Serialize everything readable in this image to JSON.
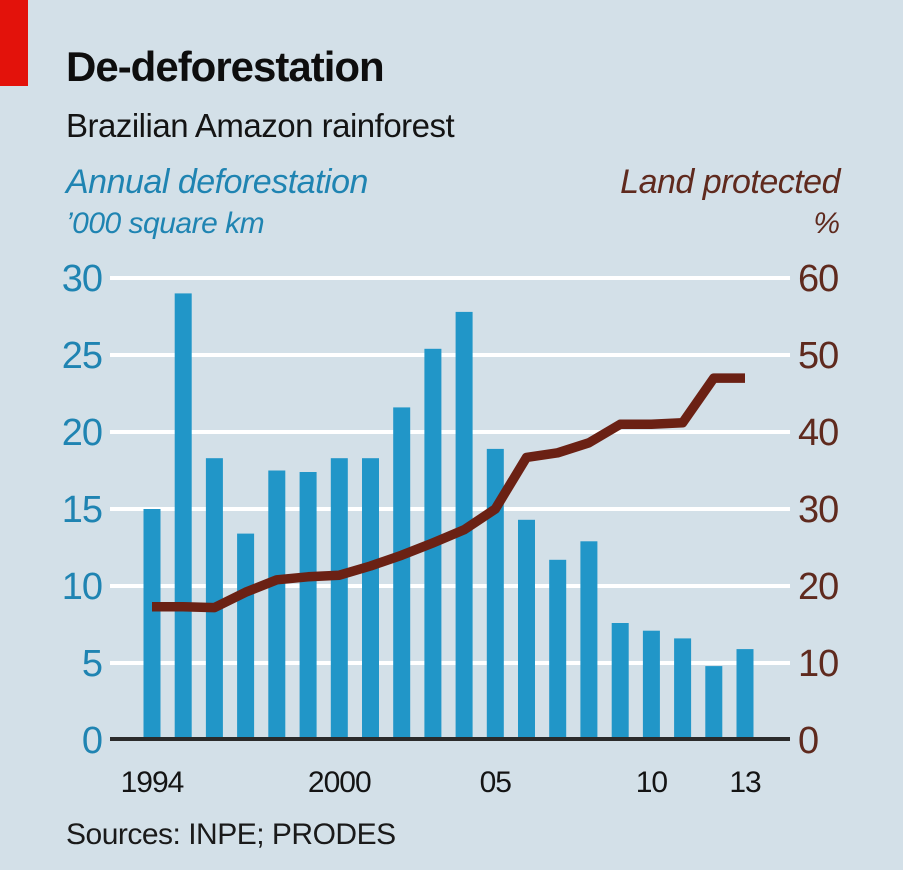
{
  "header": {
    "title": "De-deforestation",
    "subtitle": "Brazilian Amazon rainforest"
  },
  "legend": {
    "left": {
      "title": "Annual deforestation",
      "unit": "’000 square km"
    },
    "right": {
      "title": "Land protected",
      "unit": "%"
    }
  },
  "footer": {
    "sources": "Sources: INPE; PRODES"
  },
  "palette": {
    "background": "#d3e0e8",
    "accent_red": "#e3120b",
    "bar_blue": "#2196c8",
    "blue_text": "#1f84b2",
    "line_maroon": "#6b2114",
    "maroon_text": "#5f2a1e",
    "gridline": "#ffffff",
    "axis_line": "#2b2b2b",
    "black_text": "#141414"
  },
  "chart_data": {
    "type": "bar+line",
    "title": "De-deforestation — Brazilian Amazon rainforest",
    "grid": "horizontal-white",
    "legend_position": "above, split left (bars) / right (line)",
    "categories": [
      1994,
      1995,
      1996,
      1997,
      1998,
      1999,
      2000,
      2001,
      2002,
      2003,
      2004,
      2005,
      2006,
      2007,
      2008,
      2009,
      2010,
      2011,
      2012,
      2013
    ],
    "series": [
      {
        "name": "Annual deforestation",
        "unit": "’000 square km",
        "type": "bar",
        "axis": "left",
        "values": [
          15.0,
          29.0,
          18.3,
          13.4,
          17.5,
          17.4,
          18.3,
          18.3,
          21.6,
          25.4,
          27.8,
          18.9,
          14.3,
          11.7,
          12.9,
          7.6,
          7.1,
          6.6,
          4.8,
          5.9
        ]
      },
      {
        "name": "Land protected",
        "unit": "%",
        "type": "line",
        "axis": "right",
        "values": [
          17.3,
          17.3,
          17.2,
          19.2,
          20.8,
          21.2,
          21.4,
          22.6,
          24.0,
          25.6,
          27.3,
          30.0,
          36.7,
          37.3,
          38.6,
          41.0,
          41.0,
          41.2,
          47.0,
          47.0
        ]
      }
    ],
    "left_axis": {
      "label": "Annual deforestation, ’000 square km",
      "min": 0,
      "max": 30,
      "ticks": [
        30,
        25,
        20,
        15,
        10,
        5,
        0
      ]
    },
    "right_axis": {
      "label": "Land protected, %",
      "min": 0,
      "max": 60,
      "ticks": [
        60,
        50,
        40,
        30,
        20,
        10,
        0
      ]
    },
    "x_ticks": [
      {
        "label": "1994",
        "year": 1994
      },
      {
        "label": "2000",
        "year": 2000
      },
      {
        "label": "05",
        "year": 2005
      },
      {
        "label": "10",
        "year": 2010
      },
      {
        "label": "13",
        "year": 2013
      }
    ]
  }
}
